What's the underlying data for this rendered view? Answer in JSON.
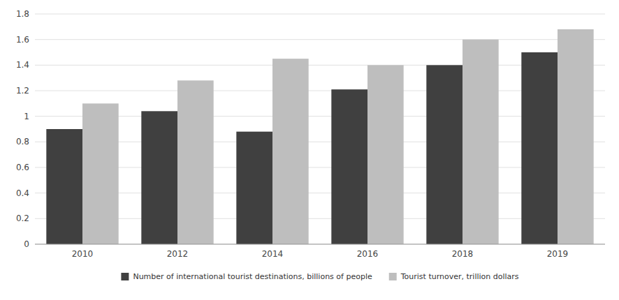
{
  "chart_data": {
    "type": "bar",
    "categories": [
      "2010",
      "2012",
      "2014",
      "2016",
      "2018",
      "2019"
    ],
    "series": [
      {
        "name": "Number of international tourist destinations, billions of people",
        "color": "#404040",
        "values": [
          0.9,
          1.04,
          0.88,
          1.21,
          1.4,
          1.5
        ]
      },
      {
        "name": "Tourist turnover, trillion dollars",
        "color": "#bebebe",
        "values": [
          1.1,
          1.28,
          1.45,
          1.4,
          1.6,
          1.68
        ]
      }
    ],
    "ylim": [
      0,
      1.8
    ],
    "yticks": [
      0,
      0.2,
      0.4,
      0.6,
      0.8,
      1.0,
      1.2,
      1.4,
      1.6,
      1.8
    ],
    "grid": true,
    "legend": "bottom"
  }
}
